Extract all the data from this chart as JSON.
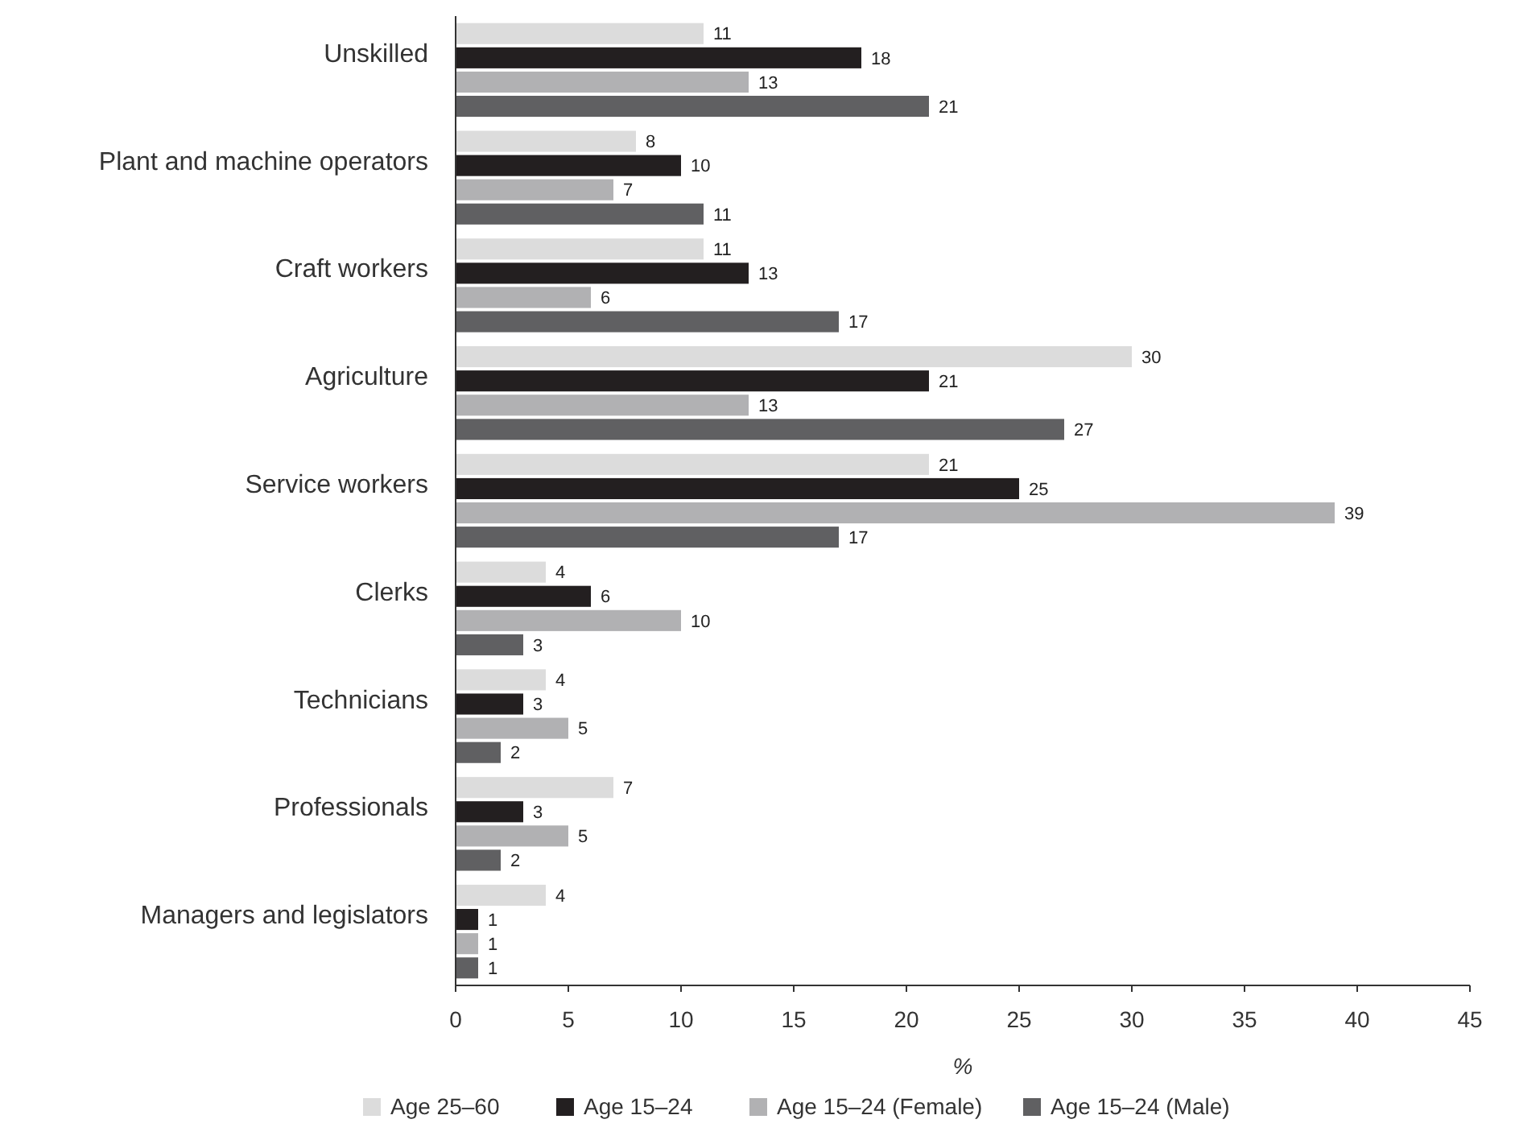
{
  "chart_data": {
    "type": "bar",
    "orientation": "horizontal",
    "xlabel": "%",
    "categories": [
      "Unskilled",
      "Plant and machine operators",
      "Craft workers",
      "Agriculture",
      "Service workers",
      "Clerks",
      "Technicians",
      "Professionals",
      "Managers and legislators"
    ],
    "series": [
      {
        "name": "Age 25–60",
        "color": "#dcdcdc",
        "values": [
          11,
          8,
          11,
          30,
          21,
          4,
          4,
          7,
          4
        ]
      },
      {
        "name": "Age 15–24",
        "color": "#231f20",
        "values": [
          18,
          10,
          13,
          21,
          25,
          6,
          3,
          3,
          1
        ]
      },
      {
        "name": "Age 15–24 (Female)",
        "color": "#b1b1b3",
        "values": [
          13,
          7,
          6,
          13,
          39,
          10,
          5,
          5,
          1
        ]
      },
      {
        "name": "Age 15–24 (Male)",
        "color": "#606062",
        "values": [
          21,
          11,
          17,
          27,
          17,
          3,
          2,
          2,
          1
        ]
      }
    ],
    "xlim": [
      0,
      45
    ],
    "xticks": [
      0,
      5,
      10,
      15,
      20,
      25,
      30,
      35,
      40,
      45
    ],
    "data_labels": true,
    "legend": "bottom",
    "grid": false
  }
}
